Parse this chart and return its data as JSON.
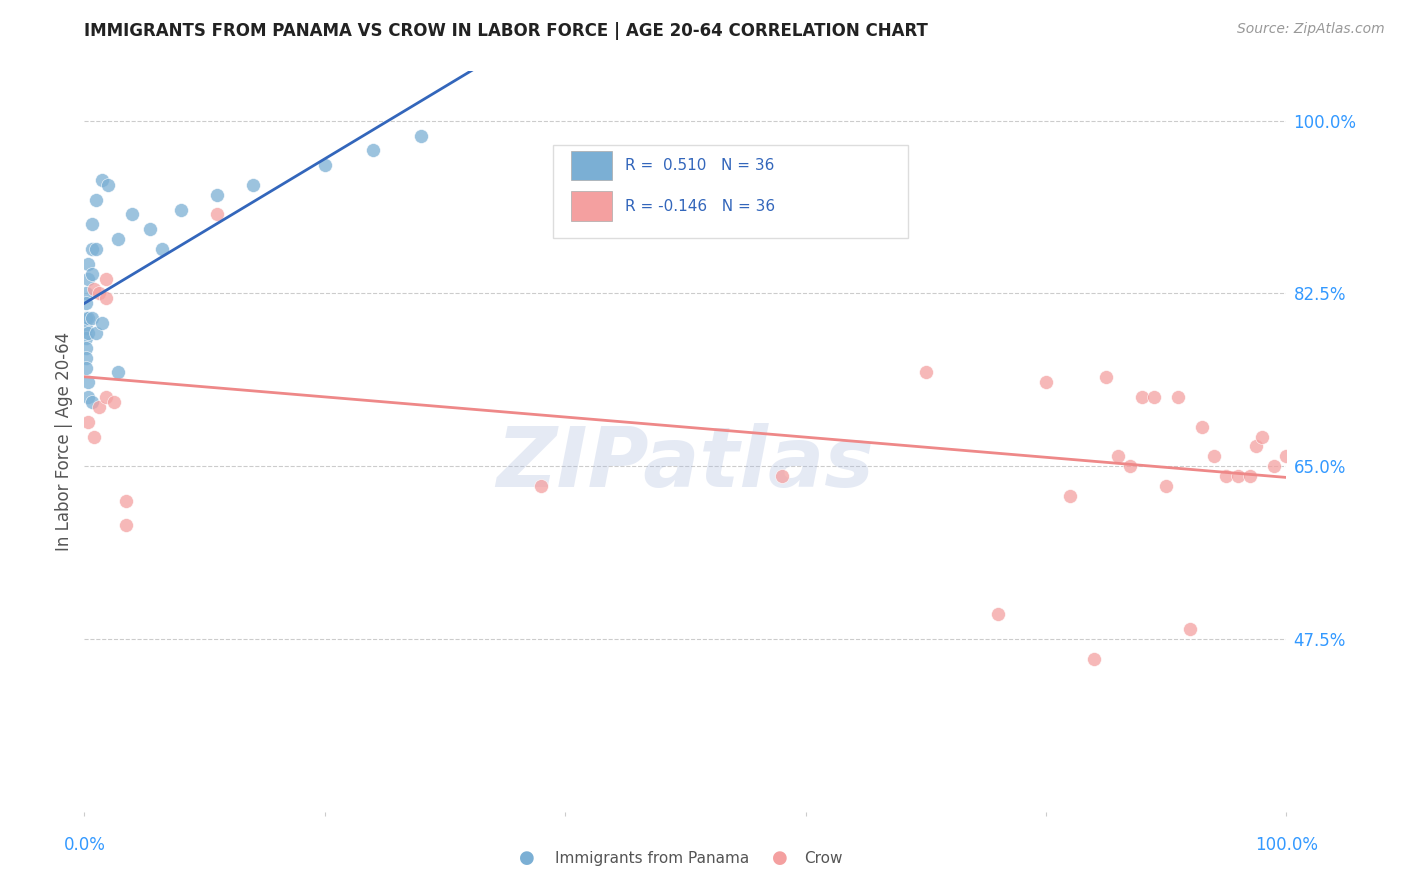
{
  "title": "IMMIGRANTS FROM PANAMA VS CROW IN LABOR FORCE | AGE 20-64 CORRELATION CHART",
  "source": "Source: ZipAtlas.com",
  "ylabel": "In Labor Force | Age 20-64",
  "ytick_vals": [
    0.475,
    0.65,
    0.825,
    1.0
  ],
  "ytick_labels": [
    "47.5%",
    "65.0%",
    "82.5%",
    "100.0%"
  ],
  "xlim": [
    0.0,
    1.0
  ],
  "ylim": [
    0.3,
    1.05
  ],
  "blue_color": "#7BAFD4",
  "pink_color": "#F4A0A0",
  "blue_line_color": "#3366BB",
  "pink_line_color": "#EE8888",
  "panama_x": [
    0.001,
    0.001,
    0.001,
    0.001,
    0.001,
    0.001,
    0.001,
    0.001,
    0.003,
    0.003,
    0.003,
    0.003,
    0.003,
    0.003,
    0.006,
    0.006,
    0.006,
    0.006,
    0.006,
    0.01,
    0.01,
    0.01,
    0.015,
    0.015,
    0.02,
    0.028,
    0.028,
    0.04,
    0.055,
    0.065,
    0.08,
    0.11,
    0.14,
    0.2,
    0.24,
    0.28
  ],
  "panama_y": [
    0.825,
    0.815,
    0.8,
    0.79,
    0.78,
    0.77,
    0.76,
    0.75,
    0.855,
    0.84,
    0.8,
    0.785,
    0.735,
    0.72,
    0.895,
    0.87,
    0.845,
    0.8,
    0.715,
    0.92,
    0.87,
    0.785,
    0.94,
    0.795,
    0.935,
    0.88,
    0.745,
    0.905,
    0.89,
    0.87,
    0.91,
    0.925,
    0.935,
    0.955,
    0.97,
    0.985
  ],
  "crow_x": [
    0.003,
    0.008,
    0.008,
    0.012,
    0.012,
    0.018,
    0.018,
    0.018,
    0.025,
    0.035,
    0.035,
    0.11,
    0.38,
    0.58,
    0.7,
    0.76,
    0.8,
    0.82,
    0.84,
    0.85,
    0.86,
    0.87,
    0.88,
    0.89,
    0.9,
    0.91,
    0.92,
    0.93,
    0.94,
    0.95,
    0.96,
    0.97,
    0.975,
    0.98,
    0.99,
    1.0
  ],
  "crow_y": [
    0.695,
    0.83,
    0.68,
    0.825,
    0.71,
    0.84,
    0.82,
    0.72,
    0.715,
    0.615,
    0.59,
    0.905,
    0.63,
    0.64,
    0.745,
    0.5,
    0.735,
    0.62,
    0.455,
    0.74,
    0.66,
    0.65,
    0.72,
    0.72,
    0.63,
    0.72,
    0.485,
    0.69,
    0.66,
    0.64,
    0.64,
    0.64,
    0.67,
    0.68,
    0.65,
    0.66
  ]
}
